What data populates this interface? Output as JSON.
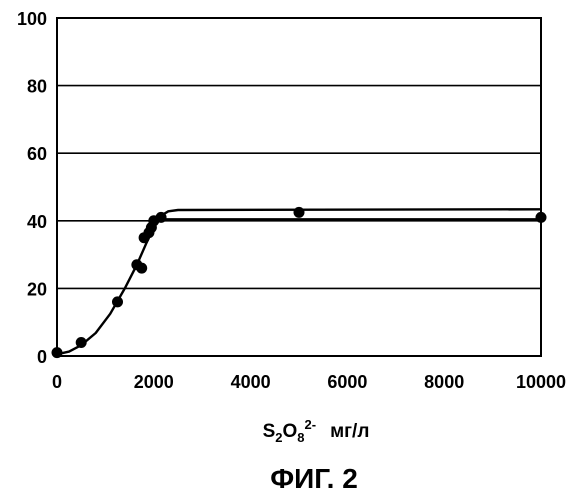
{
  "figure_caption": "ФИГ. 2",
  "chart_data": {
    "type": "scatter",
    "title": "",
    "xlabel": {
      "base": "S",
      "sub1": "2",
      "mid": "O",
      "sub2": "8",
      "sup": "2-",
      "unit": "мг/л"
    },
    "ylabel": "",
    "xlim": [
      0,
      10000
    ],
    "ylim": [
      0,
      100
    ],
    "x_ticks": [
      0,
      2000,
      4000,
      6000,
      8000,
      10000
    ],
    "y_ticks": [
      0,
      20,
      40,
      60,
      80,
      100
    ],
    "grid": "horizontal",
    "legend": "none",
    "series": [
      {
        "points": [
          {
            "x": 0,
            "y": 1
          },
          {
            "x": 500,
            "y": 4
          },
          {
            "x": 1250,
            "y": 16
          },
          {
            "x": 1650,
            "y": 27
          },
          {
            "x": 1750,
            "y": 26
          },
          {
            "x": 1800,
            "y": 35
          },
          {
            "x": 1900,
            "y": 36.5
          },
          {
            "x": 1950,
            "y": 38
          },
          {
            "x": 2000,
            "y": 40
          },
          {
            "x": 2150,
            "y": 41
          },
          {
            "x": 5000,
            "y": 42.5
          },
          {
            "x": 10000,
            "y": 41
          }
        ]
      }
    ],
    "fit_curve": [
      {
        "x": 0,
        "y": 0.5
      },
      {
        "x": 250,
        "y": 1.3
      },
      {
        "x": 500,
        "y": 3.2
      },
      {
        "x": 800,
        "y": 6.8
      },
      {
        "x": 1100,
        "y": 12.5
      },
      {
        "x": 1400,
        "y": 20
      },
      {
        "x": 1650,
        "y": 27
      },
      {
        "x": 1850,
        "y": 33.5
      },
      {
        "x": 2000,
        "y": 38
      },
      {
        "x": 2150,
        "y": 41.5
      },
      {
        "x": 2300,
        "y": 42.8
      },
      {
        "x": 2500,
        "y": 43.2
      },
      {
        "x": 10000,
        "y": 43.4
      }
    ],
    "plateau_line": {
      "x_start": 2200,
      "x_end": 10000,
      "y": 40.5
    }
  }
}
